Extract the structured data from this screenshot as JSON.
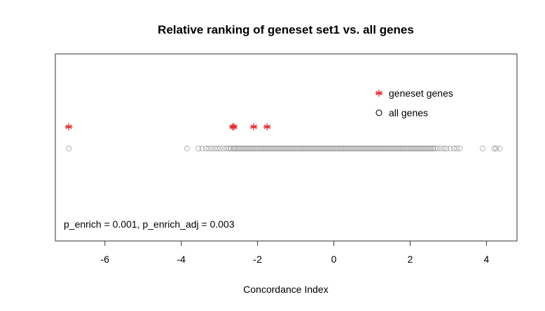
{
  "chart_data": {
    "type": "scatter",
    "title": "Relative ranking of geneset  set1 vs. all genes",
    "xlabel": "Concordance Index",
    "ylabel": "",
    "xlim": [
      -7.3,
      4.8
    ],
    "xticks": [
      -6,
      -4,
      -2,
      0,
      2,
      4
    ],
    "xtick_labels": [
      "-6",
      "-4",
      "-2",
      "0",
      "2",
      "4"
    ],
    "grid": false,
    "legend_position": "top-right",
    "series": [
      {
        "name": "geneset genes",
        "marker": "asterisk",
        "color": "#e8282b",
        "row": "upper",
        "x": [
          -6.95,
          -2.65,
          -2.62,
          -2.1,
          -1.75
        ]
      },
      {
        "name": "all genes",
        "marker": "open-circle",
        "color": "#000000",
        "row": "lower",
        "x": [
          -6.95,
          -3.85,
          -3.55,
          -3.45,
          -3.35,
          -3.28,
          -3.2,
          -3.12,
          -3.05,
          -2.98,
          -2.9,
          -2.82,
          -2.75,
          -2.7,
          -2.64,
          -2.6,
          -2.55,
          -2.5,
          -2.45,
          -2.4,
          -2.35,
          -2.3,
          -2.25,
          -2.2,
          -2.15,
          -2.1,
          -2.05,
          -2.0,
          -1.95,
          -1.9,
          -1.85,
          -1.8,
          -1.75,
          -1.7,
          -1.65,
          -1.6,
          -1.55,
          -1.5,
          -1.45,
          -1.4,
          -1.35,
          -1.3,
          -1.25,
          -1.2,
          -1.15,
          -1.1,
          -1.05,
          -1.0,
          -0.95,
          -0.9,
          -0.85,
          -0.8,
          -0.75,
          -0.7,
          -0.65,
          -0.6,
          -0.55,
          -0.5,
          -0.45,
          -0.4,
          -0.35,
          -0.3,
          -0.25,
          -0.2,
          -0.15,
          -0.1,
          -0.05,
          0.0,
          0.05,
          0.1,
          0.15,
          0.2,
          0.25,
          0.3,
          0.35,
          0.4,
          0.45,
          0.5,
          0.55,
          0.6,
          0.65,
          0.7,
          0.75,
          0.8,
          0.85,
          0.9,
          0.95,
          1.0,
          1.05,
          1.1,
          1.15,
          1.2,
          1.25,
          1.3,
          1.35,
          1.4,
          1.45,
          1.5,
          1.55,
          1.6,
          1.65,
          1.7,
          1.75,
          1.8,
          1.85,
          1.9,
          1.95,
          2.0,
          2.05,
          2.1,
          2.15,
          2.2,
          2.25,
          2.3,
          2.35,
          2.4,
          2.45,
          2.5,
          2.55,
          2.6,
          2.65,
          2.72,
          2.8,
          2.88,
          2.95,
          3.05,
          3.15,
          3.22,
          3.3,
          3.9,
          4.2,
          4.25,
          4.35
        ]
      }
    ],
    "annotation": "p_enrich = 0.001, p_enrich_adj = 0.003"
  }
}
